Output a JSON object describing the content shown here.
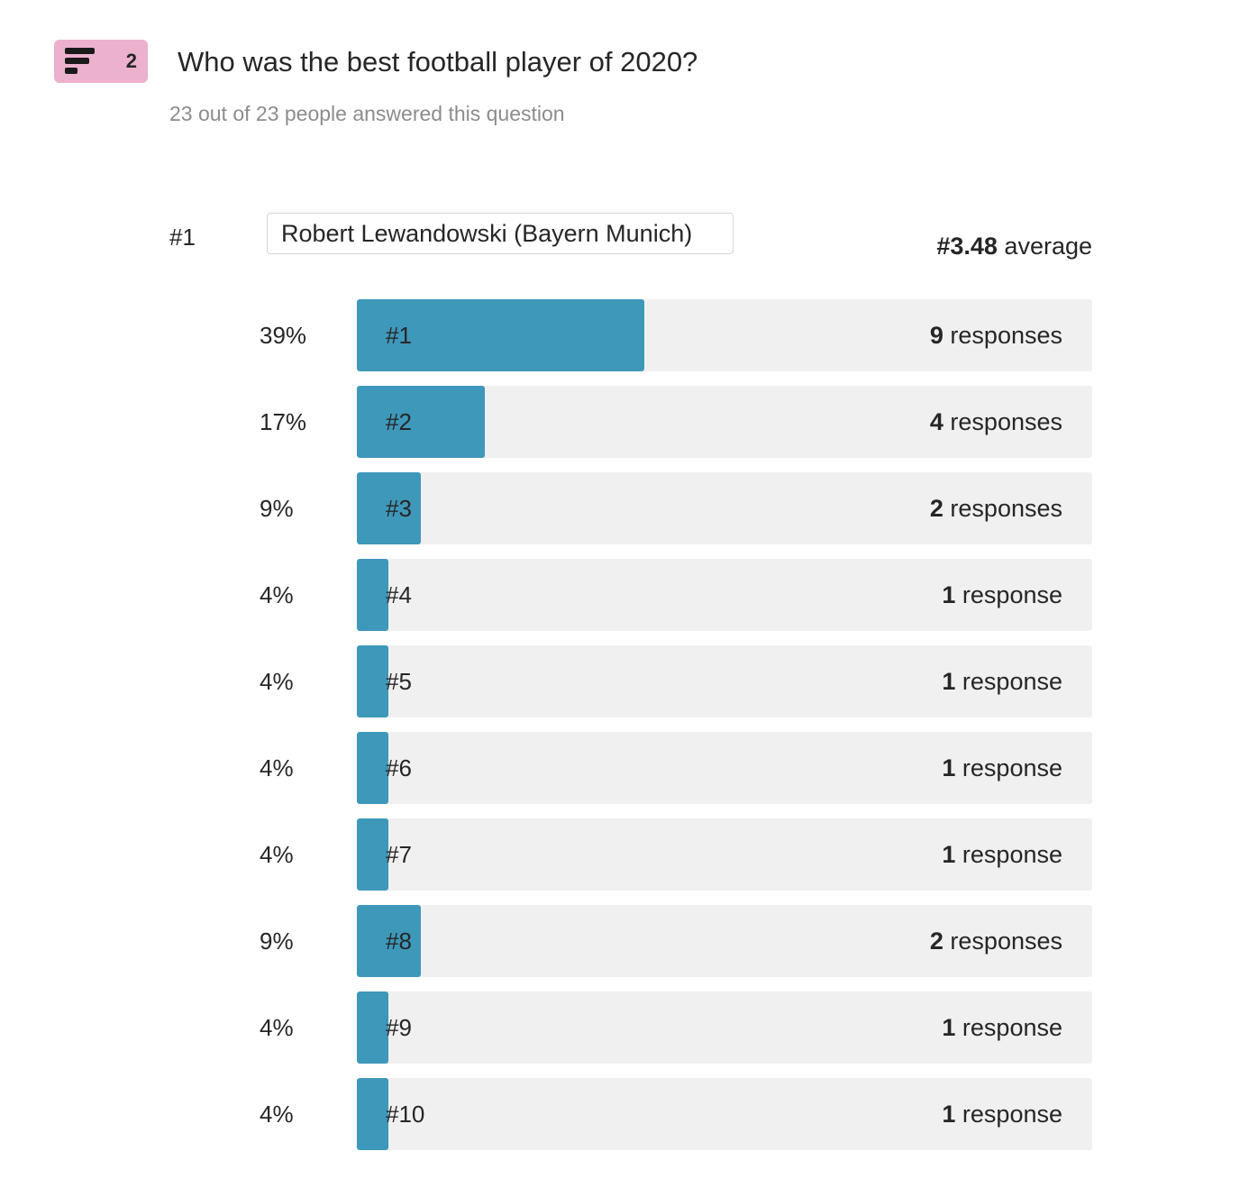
{
  "question": {
    "number": "2",
    "icon": "ranking-icon",
    "badge_color": "#ebb1cd",
    "title": "Who was the best football player of 2020?",
    "subtitle": "23 out of 23 people answered this question"
  },
  "choice": {
    "rank_label": "#1",
    "name": "Robert Lewandowski (Bayern Munich)",
    "average_value": "#3.48",
    "average_label": "average"
  },
  "colors": {
    "bar_fill": "#3e98ba",
    "bar_track": "#f0f0f0"
  },
  "chart_data": {
    "type": "bar",
    "categories": [
      "#1",
      "#2",
      "#3",
      "#4",
      "#5",
      "#6",
      "#7",
      "#8",
      "#9",
      "#10"
    ],
    "percent_labels": [
      "39%",
      "17%",
      "9%",
      "4%",
      "4%",
      "4%",
      "4%",
      "9%",
      "4%",
      "4%"
    ],
    "counts": [
      9,
      4,
      2,
      1,
      1,
      1,
      1,
      2,
      1,
      1
    ],
    "count_labels": [
      "responses",
      "responses",
      "responses",
      "response",
      "response",
      "response",
      "response",
      "responses",
      "response",
      "response"
    ],
    "total_responses": 23
  }
}
